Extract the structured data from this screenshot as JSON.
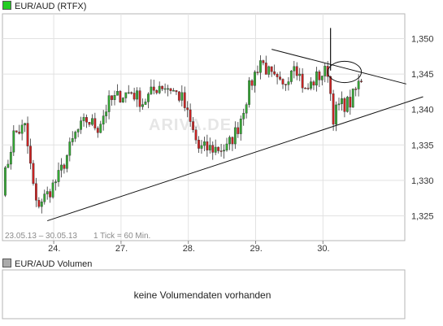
{
  "chart_data": {
    "type": "candlestick",
    "title": "EUR/AUD (RTFX)",
    "legend_color": "#22cc22",
    "range_text": "23.05.13 – 30.05.13",
    "tick_text": "1 Tick = 60 Min.",
    "watermark": "ARIVA.DE",
    "ylim": [
      1.3215,
      1.3535
    ],
    "y_ticks": [
      "1,325",
      "1,330",
      "1,335",
      "1,340",
      "1,345",
      "1,350"
    ],
    "y_tick_values": [
      1.325,
      1.33,
      1.335,
      1.34,
      1.345,
      1.35
    ],
    "xlim": [
      0,
      120
    ],
    "x_ticks": [
      {
        "label": "24.",
        "x": 18
      },
      {
        "label": "27.",
        "x": 42
      },
      {
        "label": "28.",
        "x": 66
      },
      {
        "label": "29.",
        "x": 90
      },
      {
        "label": "30.",
        "x": 114
      }
    ],
    "up_color": "#33aa33",
    "down_color": "#cc2222",
    "anchors": [
      [
        0,
        1.329
      ],
      [
        4,
        1.3365
      ],
      [
        8,
        1.3375
      ],
      [
        12,
        1.3265
      ],
      [
        16,
        1.328
      ],
      [
        20,
        1.3305
      ],
      [
        26,
        1.3365
      ],
      [
        30,
        1.3385
      ],
      [
        34,
        1.3375
      ],
      [
        38,
        1.341
      ],
      [
        42,
        1.342
      ],
      [
        46,
        1.3425
      ],
      [
        50,
        1.341
      ],
      [
        56,
        1.3435
      ],
      [
        60,
        1.343
      ],
      [
        64,
        1.3415
      ],
      [
        70,
        1.3345
      ],
      [
        74,
        1.3345
      ],
      [
        80,
        1.3345
      ],
      [
        84,
        1.3375
      ],
      [
        88,
        1.343
      ],
      [
        92,
        1.347
      ],
      [
        96,
        1.3445
      ],
      [
        100,
        1.343
      ],
      [
        104,
        1.347
      ],
      [
        108,
        1.3425
      ],
      [
        112,
        1.3445
      ],
      [
        116,
        1.3455
      ],
      [
        118,
        1.339
      ],
      [
        120,
        1.3405
      ],
      [
        124,
        1.341
      ],
      [
        128,
        1.3445
      ]
    ],
    "annotations": {
      "support_line": [
        [
          16,
          1.3243
        ],
        [
          150,
          1.3418
        ]
      ],
      "resistance_line": [
        [
          96,
          1.3485
        ],
        [
          144,
          1.3436
        ]
      ],
      "spike": {
        "x": 117,
        "low": 1.3455,
        "high": 1.3515
      },
      "ellipse": {
        "cx": 122,
        "cy": 1.3453,
        "rx": 6,
        "ry": 0.0015
      }
    }
  },
  "volume": {
    "title": "EUR/AUD Volumen",
    "legend_color": "#aaaaaa",
    "message": "keine Volumendaten vorhanden"
  }
}
